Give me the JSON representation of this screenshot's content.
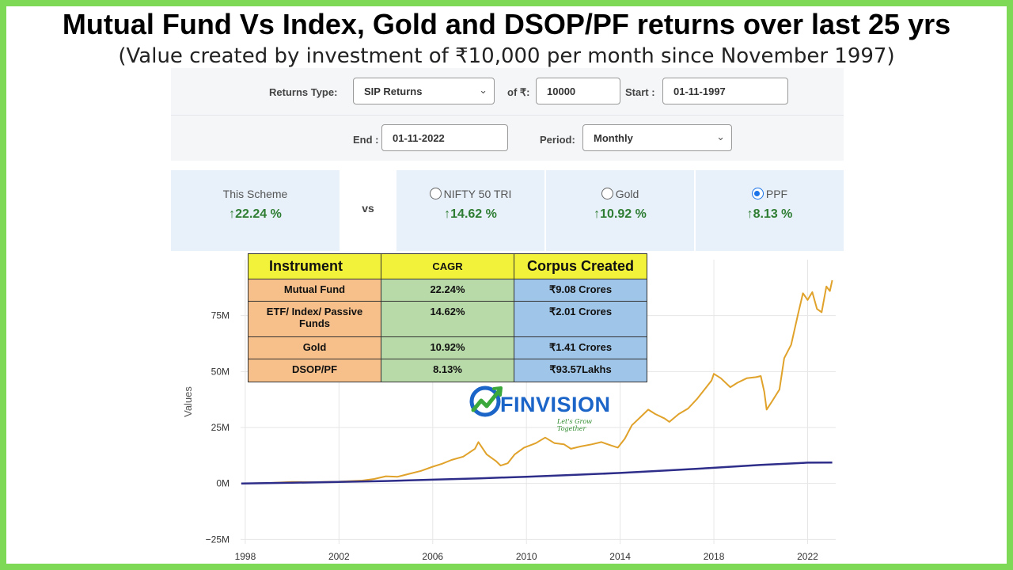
{
  "header": {
    "title": "Mutual Fund Vs Index, Gold and DSOP/PF returns over last 25 yrs",
    "subtitle": "(Value created by investment of ₹10,000 per month since November 1997)"
  },
  "form": {
    "returns_type_label": "Returns Type:",
    "returns_type_value": "SIP Returns",
    "amount_label": "of ₹:",
    "amount_value": "10000",
    "start_label": "Start :",
    "start_value": "01-11-1997",
    "end_label": "End :",
    "end_value": "01-11-2022",
    "period_label": "Period:",
    "period_value": "Monthly"
  },
  "comparison": {
    "scheme": {
      "label": "This Scheme",
      "value": "22.24 %"
    },
    "vs_label": "vs",
    "options": [
      {
        "label": "NIFTY 50 TRI",
        "value": "14.62 %",
        "selected": false
      },
      {
        "label": "Gold",
        "value": "10.92 %",
        "selected": false
      },
      {
        "label": "PPF",
        "value": "8.13 %",
        "selected": true
      }
    ]
  },
  "table": {
    "headers": [
      "Instrument",
      "CAGR",
      "Corpus Created"
    ],
    "rows": [
      [
        "Mutual Fund",
        "22.24%",
        "₹9.08 Crores"
      ],
      [
        "ETF/ Index/ Passive Funds",
        "14.62%",
        "₹2.01 Crores"
      ],
      [
        "Gold",
        "10.92%",
        "₹1.41 Crores"
      ],
      [
        "DSOP/PF",
        "8.13%",
        "₹93.57Lakhs"
      ]
    ]
  },
  "logo": {
    "name": "FINVISION",
    "tagline": "Let's Grow Together"
  },
  "colors": {
    "scheme_line": "#e0a22a",
    "ppf_line": "#2e2e8a",
    "positive": "#2e7d32",
    "table_header": "#f2f23a",
    "table_col1": "#f7c08a",
    "table_col2": "#b8daa8",
    "table_col3": "#9fc5e8"
  },
  "chart_data": {
    "type": "line",
    "ylabel": "Values",
    "xlabel": "",
    "x_ticks": [
      "1998",
      "2002",
      "2006",
      "2010",
      "2014",
      "2018",
      "2022"
    ],
    "y_ticks": [
      "−25M",
      "0M",
      "25M",
      "50M",
      "75M"
    ],
    "y_tick_values": [
      -25,
      0,
      25,
      50,
      75
    ],
    "xlim": [
      1997.8,
      2023.2
    ],
    "ylim": [
      -27,
      100
    ],
    "series": [
      {
        "name": "",
        "color_key": "scheme_line",
        "points": [
          [
            1997.83,
            0
          ],
          [
            1999,
            0.2
          ],
          [
            2000,
            0.7
          ],
          [
            2001,
            0.6
          ],
          [
            2002,
            0.8
          ],
          [
            2003,
            1.3
          ],
          [
            2003.5,
            2.0
          ],
          [
            2004,
            3.2
          ],
          [
            2004.5,
            3.0
          ],
          [
            2005,
            4.3
          ],
          [
            2005.5,
            5.6
          ],
          [
            2006,
            7.5
          ],
          [
            2006.4,
            8.8
          ],
          [
            2006.8,
            10.5
          ],
          [
            2007.3,
            12.0
          ],
          [
            2007.8,
            15.5
          ],
          [
            2007.95,
            18.5
          ],
          [
            2008.3,
            13.0
          ],
          [
            2008.7,
            10.0
          ],
          [
            2008.9,
            8.0
          ],
          [
            2009.2,
            9.0
          ],
          [
            2009.5,
            13.0
          ],
          [
            2009.9,
            16.0
          ],
          [
            2010.4,
            18.0
          ],
          [
            2010.8,
            20.5
          ],
          [
            2011.2,
            18.0
          ],
          [
            2011.6,
            17.5
          ],
          [
            2011.9,
            15.5
          ],
          [
            2012.3,
            16.5
          ],
          [
            2012.8,
            17.5
          ],
          [
            2013.2,
            18.5
          ],
          [
            2013.6,
            17.0
          ],
          [
            2013.9,
            16.0
          ],
          [
            2014.2,
            20.0
          ],
          [
            2014.5,
            26.0
          ],
          [
            2014.9,
            30.0
          ],
          [
            2015.2,
            33.0
          ],
          [
            2015.5,
            31.0
          ],
          [
            2015.9,
            29.0
          ],
          [
            2016.1,
            27.5
          ],
          [
            2016.5,
            31.0
          ],
          [
            2016.9,
            33.5
          ],
          [
            2017.3,
            38.0
          ],
          [
            2017.6,
            42.0
          ],
          [
            2017.9,
            46.0
          ],
          [
            2018.0,
            49.0
          ],
          [
            2018.3,
            47.0
          ],
          [
            2018.7,
            43.0
          ],
          [
            2019.0,
            45.0
          ],
          [
            2019.4,
            47.0
          ],
          [
            2019.8,
            47.5
          ],
          [
            2020.0,
            48.0
          ],
          [
            2020.15,
            41.0
          ],
          [
            2020.25,
            33.0
          ],
          [
            2020.5,
            37.0
          ],
          [
            2020.8,
            42.0
          ],
          [
            2021.0,
            56.0
          ],
          [
            2021.3,
            62.0
          ],
          [
            2021.6,
            76.0
          ],
          [
            2021.8,
            85.0
          ],
          [
            2022.0,
            82.0
          ],
          [
            2022.2,
            85.5
          ],
          [
            2022.4,
            78.0
          ],
          [
            2022.6,
            76.5
          ],
          [
            2022.8,
            88.0
          ],
          [
            2022.95,
            86.0
          ],
          [
            2023.05,
            90.8
          ]
        ]
      },
      {
        "name": "",
        "color_key": "ppf_line",
        "points": [
          [
            1997.83,
            0
          ],
          [
            2000,
            0.3
          ],
          [
            2002,
            0.7
          ],
          [
            2004,
            1.1
          ],
          [
            2006,
            1.7
          ],
          [
            2008,
            2.3
          ],
          [
            2010,
            3.0
          ],
          [
            2012,
            3.8
          ],
          [
            2014,
            4.7
          ],
          [
            2016,
            5.8
          ],
          [
            2018,
            7.0
          ],
          [
            2020,
            8.3
          ],
          [
            2022,
            9.3
          ],
          [
            2023.05,
            9.36
          ]
        ]
      }
    ]
  }
}
